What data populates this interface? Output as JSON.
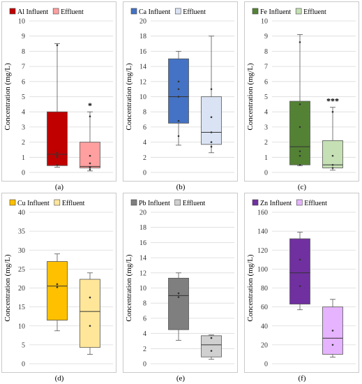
{
  "figure": {
    "ylabel": "Concentration (mg/L)"
  },
  "chart_data": [
    {
      "type": "boxplot",
      "letter": "(a)",
      "ylim": [
        0,
        10
      ],
      "ticks": [
        0,
        1,
        2,
        3,
        4,
        5,
        6,
        7,
        8,
        9,
        10
      ],
      "grid": true,
      "legend_position": "top-left",
      "significance": "*",
      "series": [
        {
          "name": "Al Influent",
          "color": "#c00000",
          "min": 0.35,
          "q1": 0.45,
          "median": 1.2,
          "q3": 4.0,
          "max": 8.5,
          "points": [
            8.4,
            1.3,
            1.1,
            1.0,
            0.5
          ]
        },
        {
          "name": "Effluent",
          "color": "#ff9f9f",
          "min": 0.1,
          "q1": 0.3,
          "median": 0.4,
          "q3": 2.0,
          "max": 4.0,
          "points": [
            3.7,
            1.1,
            0.6,
            0.35,
            0.2
          ]
        }
      ]
    },
    {
      "type": "boxplot",
      "letter": "(b)",
      "ylim": [
        0,
        20
      ],
      "ticks": [
        0,
        2,
        4,
        6,
        8,
        10,
        12,
        14,
        16,
        18,
        20
      ],
      "grid": true,
      "legend_position": "top-left",
      "significance": "",
      "series": [
        {
          "name": "Ca Influent",
          "color": "#4472c4",
          "min": 3.6,
          "q1": 6.5,
          "median": 10.0,
          "q3": 15.0,
          "max": 16.0,
          "points": [
            12.0,
            11.0,
            10.0,
            6.8,
            4.8
          ]
        },
        {
          "name": "Effluent",
          "color": "#dae3f3",
          "min": 2.6,
          "q1": 3.7,
          "median": 5.3,
          "q3": 10.0,
          "max": 18.0,
          "points": [
            11.0,
            7.3,
            5.3,
            4.0,
            3.4
          ]
        }
      ]
    },
    {
      "type": "boxplot",
      "letter": "(c)",
      "ylim": [
        0,
        10
      ],
      "ticks": [
        0,
        1,
        2,
        3,
        4,
        5,
        6,
        7,
        8,
        9,
        10
      ],
      "grid": true,
      "legend_position": "top-left",
      "significance": "***",
      "series": [
        {
          "name": "Fe Influent",
          "color": "#548235",
          "min": 0.45,
          "q1": 0.5,
          "median": 1.7,
          "q3": 4.7,
          "max": 9.1,
          "points": [
            8.6,
            4.5,
            3.0,
            1.4,
            1.1,
            0.5
          ]
        },
        {
          "name": "Effluent",
          "color": "#c5e0b4",
          "min": 0.15,
          "q1": 0.3,
          "median": 0.5,
          "q3": 2.1,
          "max": 4.3,
          "points": [
            4.0,
            1.1,
            0.5,
            0.3
          ]
        }
      ]
    },
    {
      "type": "boxplot",
      "letter": "(d)",
      "ylim": [
        0,
        40
      ],
      "ticks": [
        0,
        5,
        10,
        15,
        20,
        25,
        30,
        35,
        40
      ],
      "grid": true,
      "legend_position": "top-left",
      "significance": "",
      "series": [
        {
          "name": "Cu Influent",
          "color": "#ffc000",
          "min": 8.7,
          "q1": 11.5,
          "median": 20.5,
          "q3": 27.0,
          "max": 29.0,
          "points": [
            21.0,
            20.2
          ]
        },
        {
          "name": "Effluent",
          "color": "#ffe699",
          "min": 2.5,
          "q1": 4.3,
          "median": 13.8,
          "q3": 22.3,
          "max": 24.0,
          "points": [
            17.5,
            10.0
          ]
        }
      ]
    },
    {
      "type": "boxplot",
      "letter": "(e)",
      "ylim": [
        0,
        20
      ],
      "ticks": [
        0,
        2,
        4,
        6,
        8,
        10,
        12,
        14,
        16,
        18,
        20
      ],
      "grid": true,
      "legend_position": "top-left",
      "significance": "",
      "series": [
        {
          "name": "Pb Influent",
          "color": "#7f7f7f",
          "min": 3.1,
          "q1": 4.5,
          "median": 9.0,
          "q3": 11.3,
          "max": 12.0,
          "points": [
            9.3,
            8.8
          ]
        },
        {
          "name": "Effluent",
          "color": "#d0d0d0",
          "min": 0.6,
          "q1": 0.9,
          "median": 2.5,
          "q3": 3.7,
          "max": 3.8,
          "points": [
            3.4,
            1.7
          ]
        }
      ]
    },
    {
      "type": "boxplot",
      "letter": "(f)",
      "ylim": [
        0,
        160
      ],
      "ticks": [
        0,
        20,
        40,
        60,
        80,
        100,
        120,
        140,
        160
      ],
      "grid": true,
      "legend_position": "top-left",
      "significance": "",
      "series": [
        {
          "name": "Zn Influent",
          "color": "#7030a0",
          "min": 57,
          "q1": 63,
          "median": 96,
          "q3": 132,
          "max": 139,
          "points": [
            110,
            82
          ]
        },
        {
          "name": "Effluent",
          "color": "#e6b3ff",
          "min": 7,
          "q1": 10,
          "median": 27,
          "q3": 60,
          "max": 68,
          "points": [
            35,
            20
          ]
        }
      ]
    }
  ]
}
